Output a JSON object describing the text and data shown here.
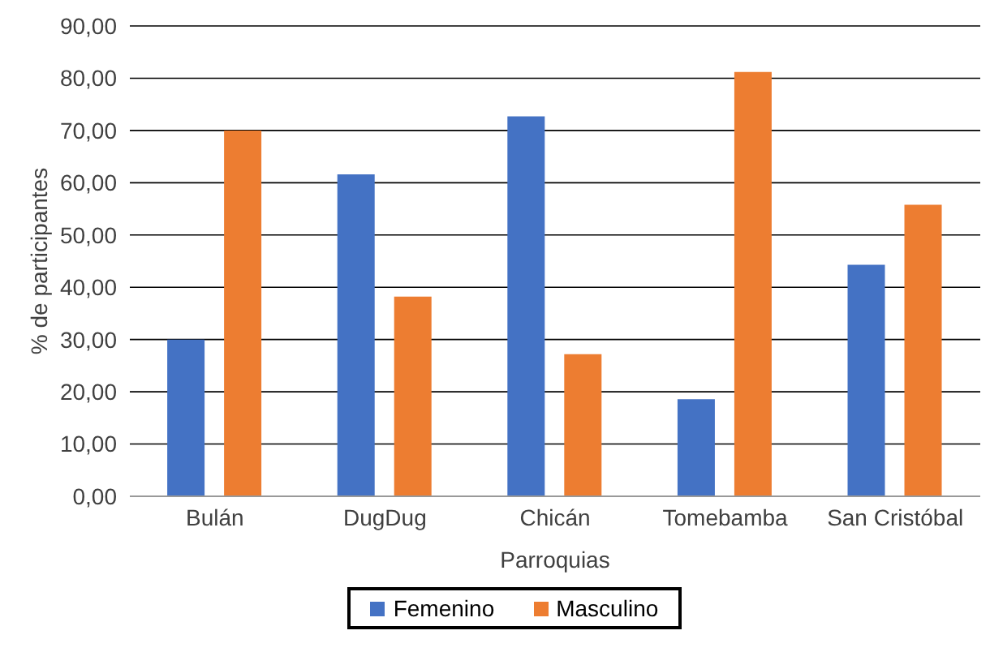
{
  "chart_data": {
    "type": "bar",
    "xlabel": "Parroquias",
    "ylabel": "% de participantes",
    "categories": [
      "Bulán",
      "DugDug",
      "Chicán",
      "Tomebamba",
      "San Cristóbal"
    ],
    "series": [
      {
        "name": "Femenino",
        "color": "#4472c4",
        "values": [
          30,
          61.6,
          72.7,
          18.6,
          44.3
        ]
      },
      {
        "name": "Masculino",
        "color": "#ed7d31",
        "values": [
          70,
          38.2,
          27.2,
          81.2,
          55.8
        ]
      }
    ],
    "ylim": [
      0,
      90
    ],
    "yticks": [
      {
        "value": 0,
        "label": "0,00"
      },
      {
        "value": 10,
        "label": "10,00"
      },
      {
        "value": 20,
        "label": "20,00"
      },
      {
        "value": 30,
        "label": "30,00"
      },
      {
        "value": 40,
        "label": "40,00"
      },
      {
        "value": 50,
        "label": "50,00"
      },
      {
        "value": 60,
        "label": "60,00"
      },
      {
        "value": 70,
        "label": "70,00"
      },
      {
        "value": 80,
        "label": "80,00"
      },
      {
        "value": 90,
        "label": "90,00"
      }
    ],
    "grid": "y",
    "legend": "bottom"
  }
}
